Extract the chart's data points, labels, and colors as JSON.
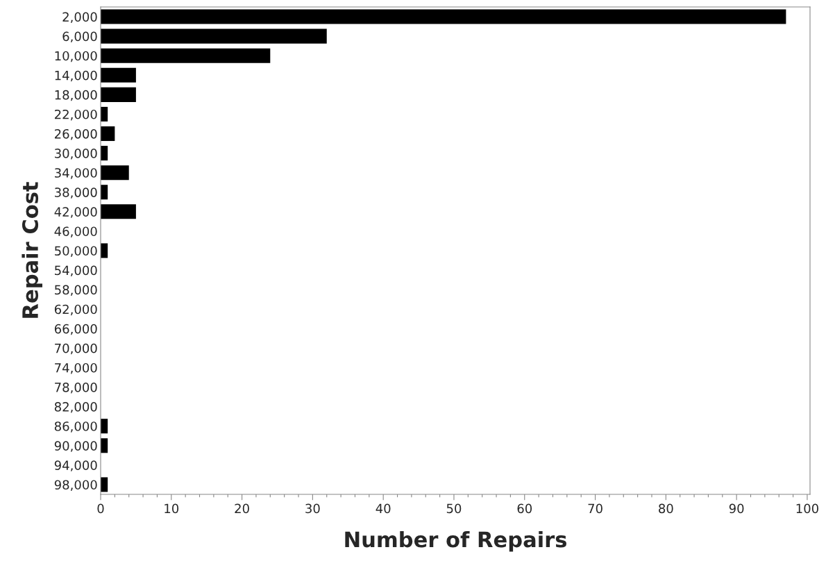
{
  "chart_data": {
    "type": "bar",
    "orientation": "horizontal",
    "xlabel": "Number of Repairs",
    "ylabel": "Repair Cost",
    "categories": [
      "2,000",
      "6,000",
      "10,000",
      "14,000",
      "18,000",
      "22,000",
      "26,000",
      "30,000",
      "34,000",
      "38,000",
      "42,000",
      "46,000",
      "50,000",
      "54,000",
      "58,000",
      "62,000",
      "66,000",
      "70,000",
      "74,000",
      "78,000",
      "82,000",
      "86,000",
      "90,000",
      "94,000",
      "98,000"
    ],
    "values": [
      97,
      32,
      24,
      5,
      5,
      1,
      2,
      1,
      4,
      1,
      5,
      0,
      1,
      0,
      0,
      0,
      0,
      0,
      0,
      0,
      0,
      1,
      1,
      0,
      1
    ],
    "color": "#000000",
    "xlim": [
      0,
      100.4
    ],
    "xticks": [
      0,
      10,
      20,
      30,
      40,
      50,
      60,
      70,
      80,
      90,
      100
    ],
    "grid": false,
    "legend": false
  }
}
